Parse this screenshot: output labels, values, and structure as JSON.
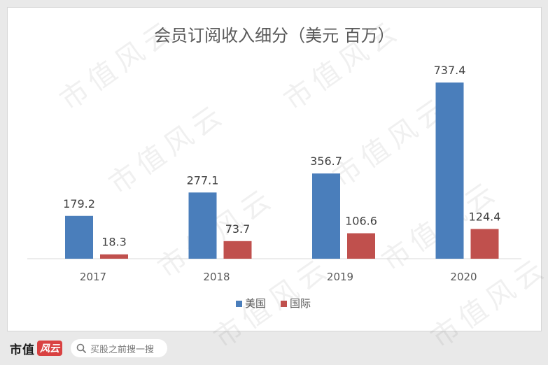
{
  "chart_data": {
    "type": "bar",
    "title": "会员订阅收入细分（美元 百万）",
    "categories": [
      "2017",
      "2018",
      "2019",
      "2020"
    ],
    "series": [
      {
        "name": "美国",
        "color": "#4a7ebb",
        "values": [
          179.2,
          277.1,
          356.7,
          737.4
        ]
      },
      {
        "name": "国际",
        "color": "#c0504d",
        "values": [
          18.3,
          73.7,
          106.6,
          124.4
        ]
      }
    ],
    "value_labels": {
      "美国": [
        "179.2",
        "277.1",
        "356.7",
        "737.4"
      ],
      "国际": [
        "18.3",
        "73.7",
        "106.6",
        "124.4"
      ]
    },
    "ylim": [
      0,
      737.4
    ],
    "grid": false,
    "legend_position": "bottom"
  },
  "watermark_text": "市值风云",
  "footer": {
    "brand_text": "市值",
    "brand_logo": "风云",
    "search_placeholder": "买股之前搜一搜",
    "search_icon": "search-icon"
  }
}
